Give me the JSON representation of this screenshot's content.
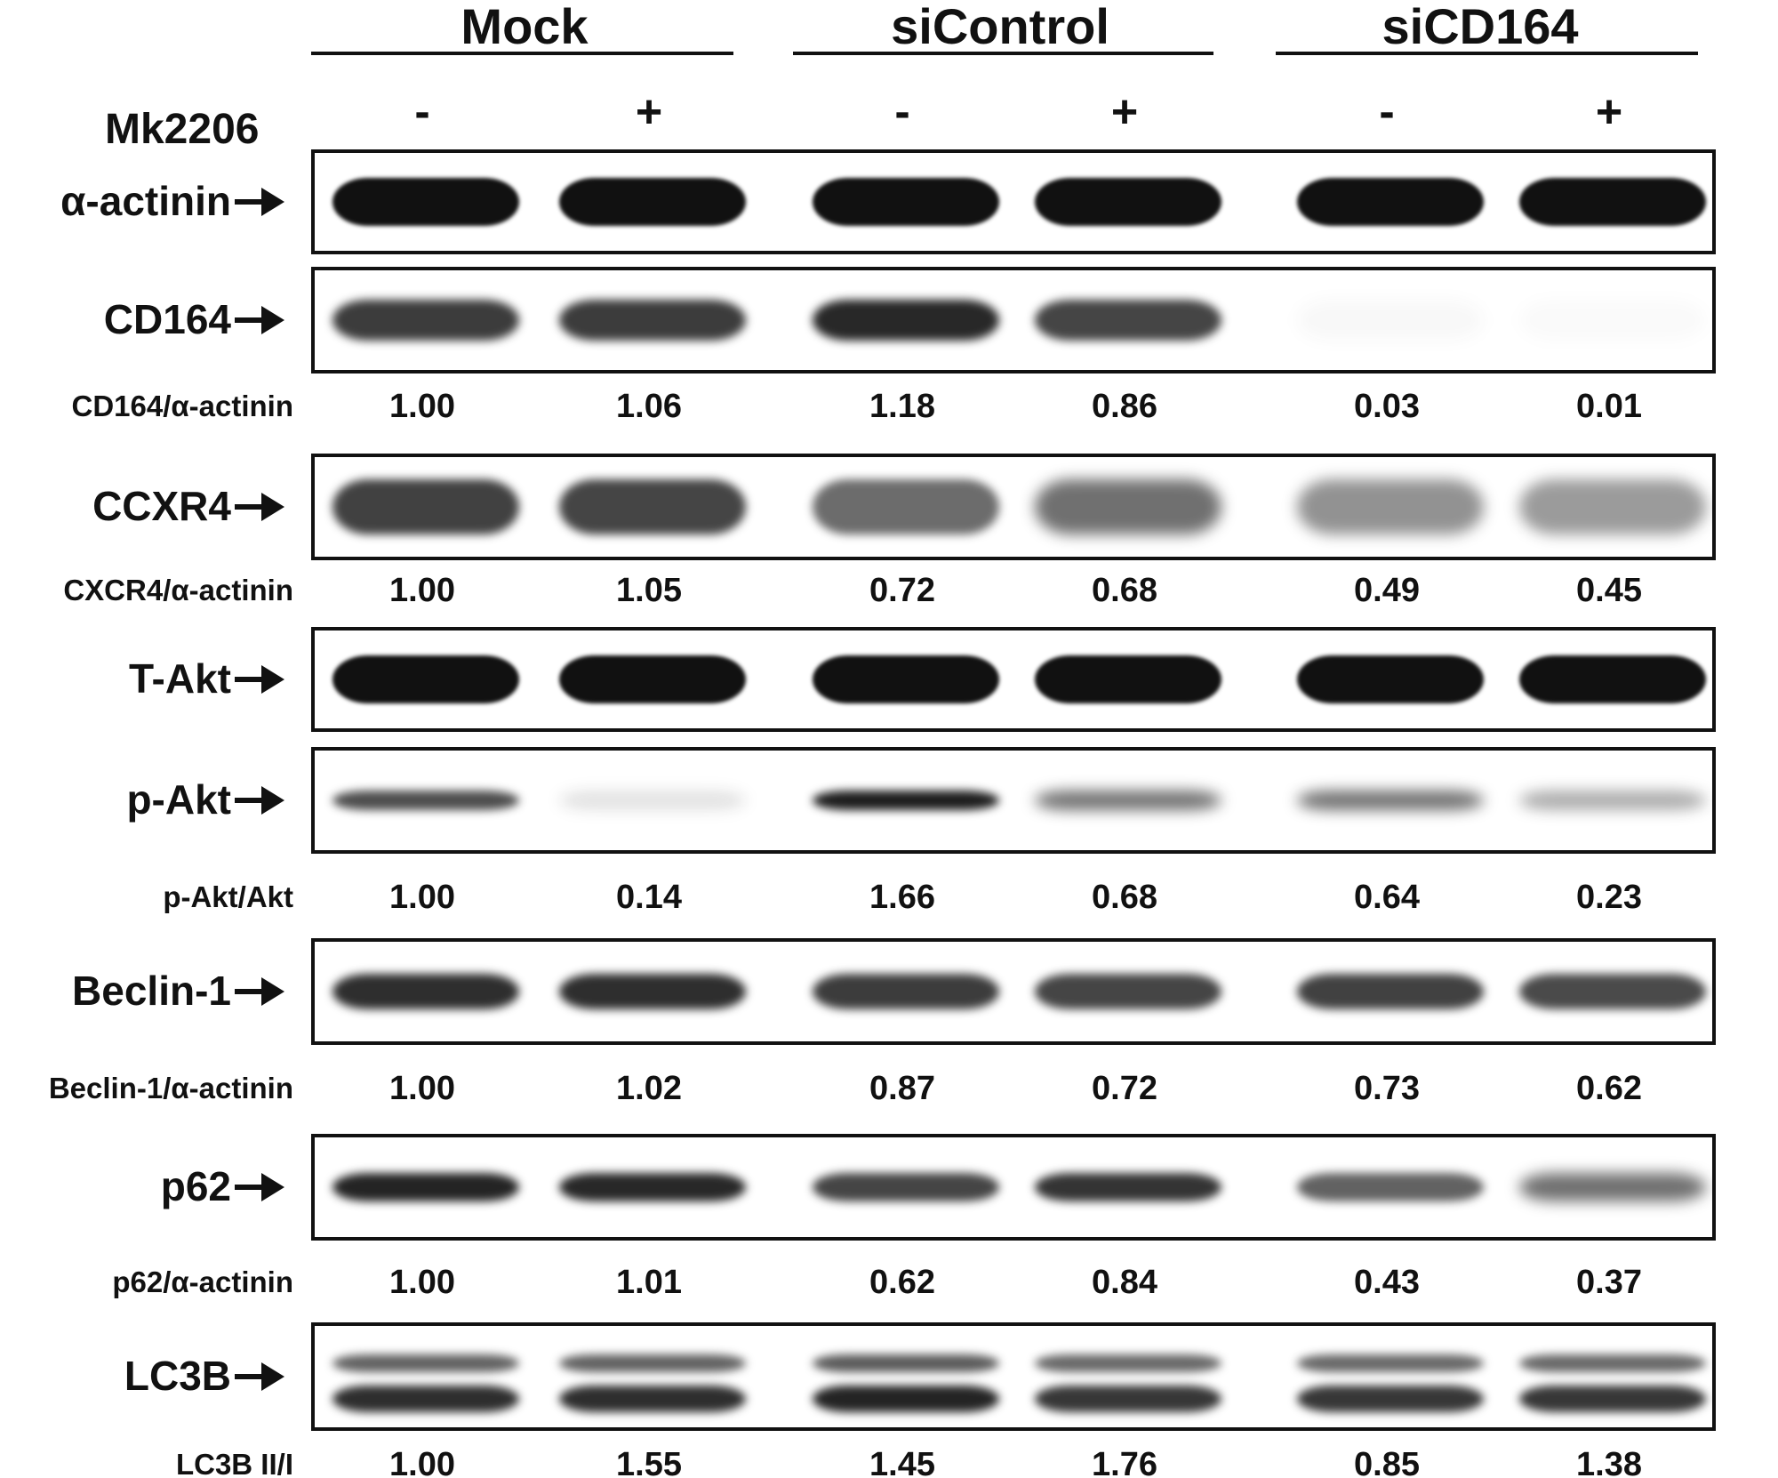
{
  "groups": [
    "Mock",
    "siControl",
    "siCD164"
  ],
  "treatment": {
    "label": "Mk2206",
    "lanes": [
      "-",
      "+",
      "-",
      "+",
      "-",
      "+"
    ]
  },
  "blots": [
    {
      "name": "α-actinin",
      "key": "alpha-actinin",
      "intensity": [
        1.0,
        1.0,
        1.0,
        1.0,
        1.0,
        1.0
      ],
      "ratio": null
    },
    {
      "name": "CD164",
      "key": "cd164",
      "intensity": [
        0.82,
        0.82,
        0.9,
        0.78,
        0.03,
        0.02
      ],
      "ratio": {
        "label": "CD164/α-actinin",
        "values": [
          "1.00",
          "1.06",
          "1.18",
          "0.86",
          "0.03",
          "0.01"
        ]
      }
    },
    {
      "name": "CCXR4",
      "key": "ccxr4",
      "intensity": [
        0.8,
        0.78,
        0.62,
        0.6,
        0.46,
        0.42
      ],
      "ratio": {
        "label": "CXCR4/α-actinin",
        "values": [
          "1.00",
          "1.05",
          "0.72",
          "0.68",
          "0.49",
          "0.45"
        ]
      }
    },
    {
      "name": "T-Akt",
      "key": "t-akt",
      "intensity": [
        1.0,
        1.0,
        1.0,
        1.0,
        1.0,
        1.0
      ],
      "ratio": null
    },
    {
      "name": "p-Akt",
      "key": "p-akt",
      "intensity": [
        0.75,
        0.12,
        0.95,
        0.6,
        0.6,
        0.35
      ],
      "ratio": {
        "label": "p-Akt/Akt",
        "values": [
          "1.00",
          "0.14",
          "1.66",
          "0.68",
          "0.64",
          "0.23"
        ]
      }
    },
    {
      "name": "Beclin-1",
      "key": "beclin-1",
      "intensity": [
        0.88,
        0.88,
        0.82,
        0.78,
        0.8,
        0.76
      ],
      "ratio": {
        "label": "Beclin-1/α-actinin",
        "values": [
          "1.00",
          "1.02",
          "0.87",
          "0.72",
          "0.73",
          "0.62"
        ]
      }
    },
    {
      "name": "p62",
      "key": "p62",
      "intensity": [
        0.92,
        0.9,
        0.78,
        0.85,
        0.66,
        0.6
      ],
      "ratio": {
        "label": "p62/α-actinin",
        "values": [
          "1.00",
          "1.01",
          "0.62",
          "0.84",
          "0.43",
          "0.37"
        ]
      }
    },
    {
      "name": "LC3B",
      "key": "lc3b",
      "intensity": [
        0.88,
        0.88,
        0.92,
        0.84,
        0.84,
        0.84
      ],
      "ratio": {
        "label": "LC3B II/I",
        "values": [
          "1.00",
          "1.55",
          "1.45",
          "1.76",
          "0.85",
          "1.38"
        ]
      }
    }
  ],
  "colors": {
    "ink": "#111111",
    "background": "#ffffff"
  }
}
